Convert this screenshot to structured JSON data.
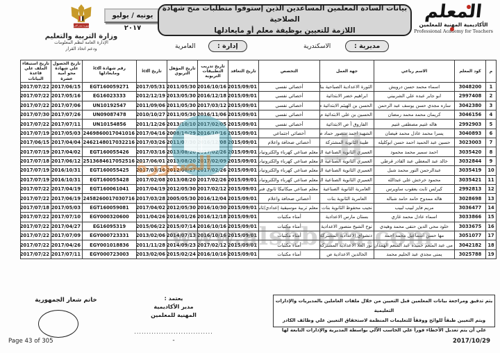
{
  "header": {
    "ministry": {
      "banner": "جمهورية مصر العربية",
      "name": "وزارة التربية والتعليم",
      "dept_line1": "الإدارة العامة لنظم المعلومات",
      "dept_line2": "ودعم اتخاذ القرار"
    },
    "academy": {
      "mark": "المعلم",
      "name_ar": "الأكاديمية المهنية للمعلمين",
      "name_en": "Professional Academy for Teachers"
    },
    "period_badge": "يونيه / يوليو ٢٠١٧",
    "title_line1": "بيانات السادة المعلمين المساعدين الذين إستوفوا متطلبات منح شهادة الصلاحية",
    "title_line2": "اللازمة للتعيين بوظيفة معلم أو مايعادلها",
    "directorate_label": "مديرية :",
    "directorate_value": "الاسكندرية",
    "administration_label": "إدارة :",
    "administration_value": "العامرية"
  },
  "table": {
    "keys": [
      "n",
      "code",
      "name",
      "workplace",
      "specialty",
      "contract_date",
      "training_date",
      "qualification_date",
      "icdl_date",
      "icdl_number",
      "literacy_cert_date",
      "file_complete_date"
    ],
    "columns": [
      "م",
      "كود المعلم",
      "الاسم رباعي",
      "جهة العمل",
      "التخصص",
      "تاريخ التعاقد",
      "تاريخ تدريب التطبيقات التربوية",
      "تاريخ المؤهل التربوي",
      "تاريخ icdl",
      "رقم شهادة icdl ومايعادلها",
      "تاريخ الحصول علي شهادة محو أمية عشرة",
      "تاريخ استيفاء الملف علي قاعدة البيانات"
    ],
    "rows": [
      {
        "n": "1",
        "code": "3048200",
        "name": "اسماء محمد حسن درويش",
        "workplace": "الثورة الاعدادية الصباحية بنات",
        "specialty": "أخصائي نفسي",
        "contract_date": "2015/09/01",
        "training_date": "2016/10/16",
        "qualification_date": "2011/05/30",
        "icdl_date": "2017/05/31",
        "icdl_number": "EGT160059271",
        "literacy_cert_date": "2017/06/15",
        "file_complete_date": "2017/07/22"
      },
      {
        "n": "2",
        "code": "2997408",
        "name": "ابو جابر عبده علي الشربيني",
        "workplace": "ابراهيم خضر الابتدائية",
        "specialty": "أخصائي نفسي",
        "contract_date": "2015/09/01",
        "training_date": "2016/12/18",
        "qualification_date": "2013/05/30",
        "icdl_date": "2012/12/19",
        "icdl_number": "EG16023333",
        "literacy_cert_date": "2017/05/16",
        "file_complete_date": "2017/07/22"
      },
      {
        "n": "3",
        "code": "3042380",
        "name": "ساره مجدي حسن يوسف عبد الرحمن",
        "workplace": "الحسن بن الهيثم الابتدائية م",
        "specialty": "أخصائي نفسي",
        "contract_date": "2015/09/01",
        "training_date": "2017/03/12",
        "qualification_date": "2011/05/30",
        "icdl_date": "2011/09/06",
        "icdl_number": "UN10192547",
        "literacy_cert_date": "2017/07/06",
        "file_complete_date": "2017/07/22"
      },
      {
        "n": "4",
        "code": "3046156",
        "name": "كريمان محمد محمد رمضان",
        "workplace": "الحسين بن علي الابتدائية م",
        "specialty": "أخصائي نفسي",
        "contract_date": "2015/09/01",
        "training_date": "2016/11/06",
        "qualification_date": "2011/05/30",
        "icdl_date": "2010/10/27",
        "icdl_number": "UN09087478",
        "literacy_cert_date": "2017/07/26",
        "file_complete_date": "2017/07/30"
      },
      {
        "n": "5",
        "code": "2992903",
        "name": "هاله غنيم مصطفى غنيم",
        "workplace": "الفاروق أ ص الابتدائية",
        "specialty": "أخصائي نفسي",
        "contract_date": "2015/09/01",
        "training_date": "2017/02/05",
        "qualification_date": "2013/10/10",
        "icdl_date": "2011/12/26",
        "icdl_number": "UN10154856",
        "literacy_cert_date": "2017/07/11",
        "file_complete_date": "2017/07/22"
      },
      {
        "n": "6",
        "code": "3040893",
        "name": "يسرا محمد عادل محمد فيضان",
        "workplace": "الشهيد احمد منصور حماد ص",
        "specialty": "أخصائي اجتماعي",
        "contract_date": "2015/09/01",
        "training_date": "2016/10/16",
        "qualification_date": "2008/10/29",
        "icdl_date": "2017/04/16",
        "icdl_number": "2469860017041016",
        "literacy_cert_date": "2017/05/03",
        "file_complete_date": "2017/07/19"
      },
      {
        "n": "7",
        "code": "3023003",
        "name": "حسين عبد الحميد احمد حسن ابوكليله",
        "workplace": "طيبة الثانوية المشتركة",
        "specialty": "أخصائي صحافة واعلام",
        "contract_date": "2015/09/01",
        "training_date": "2016/12/08",
        "qualification_date": "2011/07/30",
        "icdl_date": "2017/03/26",
        "icdl_number": "2462148017032216",
        "literacy_cert_date": "2017/04/04",
        "file_complete_date": "2017/06/15"
      },
      {
        "n": "8",
        "code": "3035420",
        "name": "احمد سمير محمد محمود",
        "workplace": "العميري الثانوية الصناعية المشتركة",
        "specialty": "معلم صناعي كهرباء والكترونيات ثانوي فني",
        "contract_date": "2015/09/01",
        "training_date": "2017/02/26",
        "qualification_date": "2013/08/20",
        "icdl_date": "2017/03/16",
        "icdl_number": "EGT160055426",
        "literacy_cert_date": "2017/04/02",
        "file_complete_date": "2017/07/19"
      },
      {
        "n": "9",
        "code": "3032844",
        "name": "خالد عبد المعطي عبد القادر قرطي",
        "workplace": "العميري الثانوية الصناعية المشتركة",
        "specialty": "معلم صناعي كهرباء والكترونيات ثانوي فني",
        "contract_date": "2015/09/01",
        "training_date": "2017/02/09",
        "qualification_date": "2013/08/20",
        "icdl_date": "2017/06/01",
        "icdl_number": "2513684617052516",
        "literacy_cert_date": "2017/06/12",
        "file_complete_date": "2017/07/18"
      },
      {
        "n": "10",
        "code": "3035419",
        "name": "عبدالرحمن النور محمد شبل",
        "workplace": "العميري الثانوية الصناعية المشتركة",
        "specialty": "معلم صناعي كهرباء والكترونيات ثانوي فني",
        "contract_date": "2015/09/01",
        "training_date": "2017/02/26",
        "qualification_date": "2012/08/27",
        "icdl_date": "2017/03/16",
        "icdl_number": "EGT160055425",
        "literacy_cert_date": "2016/10/31",
        "file_complete_date": "2017/07/19"
      },
      {
        "n": "11",
        "code": "3035421",
        "name": "محمود خرخش علي عبدالله",
        "workplace": "العميري الثانوية الصناعية المشتركة",
        "specialty": "معلم صناعي كهرباء والكترونيات ثانوي فني",
        "contract_date": "2015/09/01",
        "training_date": "2017/02/26",
        "qualification_date": "2013/08/20",
        "icdl_date": "2017/02/08",
        "icdl_number": "EGT160055428",
        "literacy_cert_date": "2016/10/31",
        "file_complete_date": "2017/07/19"
      },
      {
        "n": "12",
        "code": "2992813",
        "name": "كيرلس ثابت يعقوب ساويرس",
        "workplace": "العامرية الثانوية الصناعية",
        "specialty": "معلم صناعي ميكانيكا ثانوي فني",
        "contract_date": "2015/09/01",
        "training_date": "2017/02/12",
        "qualification_date": "2012/05/30",
        "icdl_date": "2017/04/19",
        "icdl_number": "EGT160061041",
        "literacy_cert_date": "2017/04/19",
        "file_complete_date": "2017/07/22"
      },
      {
        "n": "13",
        "code": "3028698",
        "name": "هاله ممدوح حامد حامد شباله",
        "workplace": "العامرية الثانوية بنات",
        "specialty": "أخصائي صحافة واعلام",
        "contract_date": "2015/09/01",
        "training_date": "2016/12/04",
        "qualification_date": "2005/05/30",
        "icdl_date": "2017/03/28",
        "icdl_number": "2458260017030716",
        "literacy_cert_date": "2017/06/19",
        "file_complete_date": "2017/07/22"
      },
      {
        "n": "14",
        "code": "3036477",
        "name": "مريم فايز لبيب لبيب",
        "workplace": "نجيب محفوظ الثانوية بنات",
        "specialty": "معلم تربية موسيقية إعدادي/ثانوي",
        "contract_date": "2015/09/01",
        "training_date": "2016/10/30",
        "qualification_date": "2012/05/30",
        "icdl_date": "2017/04/02",
        "icdl_number": "EGT160059081",
        "literacy_cert_date": "2017/05/03",
        "file_complete_date": "2017/07/18"
      },
      {
        "n": "15",
        "code": "3033866",
        "name": "اسماء عادل محمد غازي",
        "workplace": "بستان مارس الاعدادية",
        "specialty": "أمناء مكتبات",
        "contract_date": "2015/09/01",
        "training_date": "2016/12/18",
        "qualification_date": "2016/01/26",
        "icdl_date": "2011/04/26",
        "icdl_number": "EGY000320600",
        "literacy_cert_date": "2017/07/10",
        "file_complete_date": "2017/07/22"
      },
      {
        "n": "16",
        "code": "3033675",
        "name": "خلود محي الدين حنفي محمد وهيدي",
        "workplace": "نوح الشيخ منصور الاعدادية",
        "specialty": "أمناء مكتبات",
        "contract_date": "2015/09/01",
        "training_date": "2016/10/16",
        "qualification_date": "2015/07/14",
        "icdl_date": "2015/06/22",
        "icdl_number": "EG16095319",
        "literacy_cert_date": "2017/04/27",
        "file_complete_date": "2017/07/22"
      },
      {
        "n": "17",
        "code": "3051077",
        "name": "مها حسن اسماعيل محمد احمد",
        "workplace": "دنشواي الاعدادية المشتركة",
        "specialty": "أمناء مكتبات",
        "contract_date": "2015/09/01",
        "training_date": "2016/10/16",
        "qualification_date": "2014/07/13",
        "icdl_date": "2013/02/06",
        "icdl_number": "EGY000723331",
        "literacy_cert_date": "2017/07/09",
        "file_complete_date": "2017/07/22"
      },
      {
        "n": "18",
        "code": "3042182",
        "name": "مى عبد المنعم حميده عبد المنعم الهمدان",
        "workplace": "نور العلا الاعدادية المشتركة",
        "specialty": "أمناء مكتبات",
        "contract_date": "2015/09/01",
        "training_date": "2017/02/12",
        "qualification_date": "2014/09/23",
        "icdl_date": "2011/11/28",
        "icdl_number": "EGY001018836",
        "literacy_cert_date": "2017/04/26",
        "file_complete_date": "2017/07/22"
      },
      {
        "n": "19",
        "code": "3025788",
        "name": "يمنى مجدي عبد الحليم محمد",
        "workplace": "الخالدين الاعدادية ص",
        "specialty": "أمناء مكتبات",
        "contract_date": "2015/09/01",
        "training_date": "2016/10/16",
        "qualification_date": "2015/02/24",
        "icdl_date": "2013/02/06",
        "icdl_number": "EGY000723003",
        "literacy_cert_date": "2017/07/11",
        "file_complete_date": "2017/07/22"
      }
    ]
  },
  "footer": {
    "note_line1": "يتم تدقيق ومراجعة بيانات المعلمين قبل التعيين من خلال ملفات العاملين بالمديريات والإدارات التعليمية",
    "note_line2": "ويتم التعيين طبقاً للوائح ووفقاً للتعليمات المنظمة لاستحقاق التعيين علي وظائف الكادر",
    "note_line3": "علي أن يتم تعديل الأخطاء فوراً علي الحاسب الآلي بواسطة المديرية والإدارات التابعة لها",
    "approve_label": "يعتمد :",
    "approve_line1": "مدير الأكاديمية",
    "approve_line2": "المهنية للمعلمين",
    "approve_dots": "................................",
    "approve_dash": "-",
    "stamp_label": "خاتم شعار الجمهورية",
    "page_label": "Page 43 of 305",
    "print_date": "2017/10/29"
  },
  "watermark": {
    "brand": "الصبورة",
    "gray_mark": "الـ",
    "url": "www.alsbbora.com"
  },
  "colors": {
    "title_box_bg": "#d6d6d6",
    "eagle_gold": "#c79a2a",
    "banner_red": "#b03028",
    "accent_red": "#c02a20",
    "watermark_teal": "#50acbe",
    "watermark_orange": "#e47a20"
  }
}
